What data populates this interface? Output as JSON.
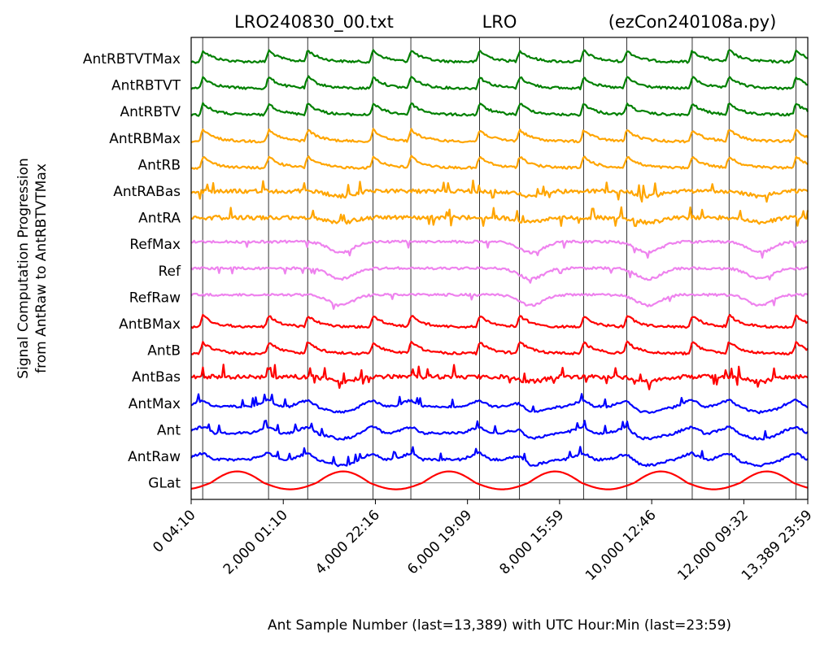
{
  "chart_data": {
    "type": "line",
    "title_left": "LRO240830_00.txt",
    "title_center": "LRO",
    "title_right": "(ezCon240108a.py)",
    "xlabel": "Ant Sample Number (last=13,389) with UTC Hour:Min (last=23:59)",
    "ylabel_line1": "Signal Computation Progression",
    "ylabel_line2": "from AntRaw to AntRBTVTMax",
    "xlim": [
      0,
      13389
    ],
    "x_ticks": [
      {
        "value": 0,
        "label": "0  04:10"
      },
      {
        "value": 2000,
        "label": "2,000  01:10"
      },
      {
        "value": 4000,
        "label": "4,000  22:16"
      },
      {
        "value": 6000,
        "label": "6,000  19:09"
      },
      {
        "value": 8000,
        "label": "8,000  15:59"
      },
      {
        "value": 10000,
        "label": "10,000  12:46"
      },
      {
        "value": 12000,
        "label": "12,000  09:32"
      },
      {
        "value": 13389,
        "label": "13,389  23:59"
      }
    ],
    "vertical_lines": [
      250,
      1680,
      2530,
      3950,
      4770,
      6260,
      7130,
      8520,
      9460,
      10880,
      11680,
      13130
    ],
    "peak_positions": [
      250,
      1680,
      2530,
      3950,
      4770,
      6260,
      7130,
      8520,
      9460,
      10880,
      11680,
      13130
    ],
    "dip_positions": [
      3250,
      7380,
      9930,
      12350
    ],
    "glat": {
      "name": "GLat",
      "color": "#ff0000",
      "period": 2300,
      "phase_peak": 1000
    },
    "series": [
      {
        "name": "AntRBTVTMax",
        "color": "#008000",
        "style": "peaks"
      },
      {
        "name": "AntRBTVT",
        "color": "#008000",
        "style": "peaks"
      },
      {
        "name": "AntRBTV",
        "color": "#008000",
        "style": "peaks"
      },
      {
        "name": "AntRBMax",
        "color": "#ffa500",
        "style": "peaks"
      },
      {
        "name": "AntRB",
        "color": "#ffa500",
        "style": "peaks"
      },
      {
        "name": "AntRABas",
        "color": "#ffa500",
        "style": "noisy"
      },
      {
        "name": "AntRA",
        "color": "#ffa500",
        "style": "noisy"
      },
      {
        "name": "RefMax",
        "color": "#ee82ee",
        "style": "ref"
      },
      {
        "name": "Ref",
        "color": "#ee82ee",
        "style": "ref"
      },
      {
        "name": "RefRaw",
        "color": "#ee82ee",
        "style": "ref"
      },
      {
        "name": "AntBMax",
        "color": "#ff0000",
        "style": "peaks"
      },
      {
        "name": "AntB",
        "color": "#ff0000",
        "style": "peaks"
      },
      {
        "name": "AntBas",
        "color": "#ff0000",
        "style": "noisy"
      },
      {
        "name": "AntMax",
        "color": "#0000ff",
        "style": "raw"
      },
      {
        "name": "Ant",
        "color": "#0000ff",
        "style": "raw"
      },
      {
        "name": "AntRaw",
        "color": "#0000ff",
        "style": "raw"
      },
      {
        "name": "GLat",
        "color": "#ff0000",
        "style": "glat"
      }
    ]
  }
}
